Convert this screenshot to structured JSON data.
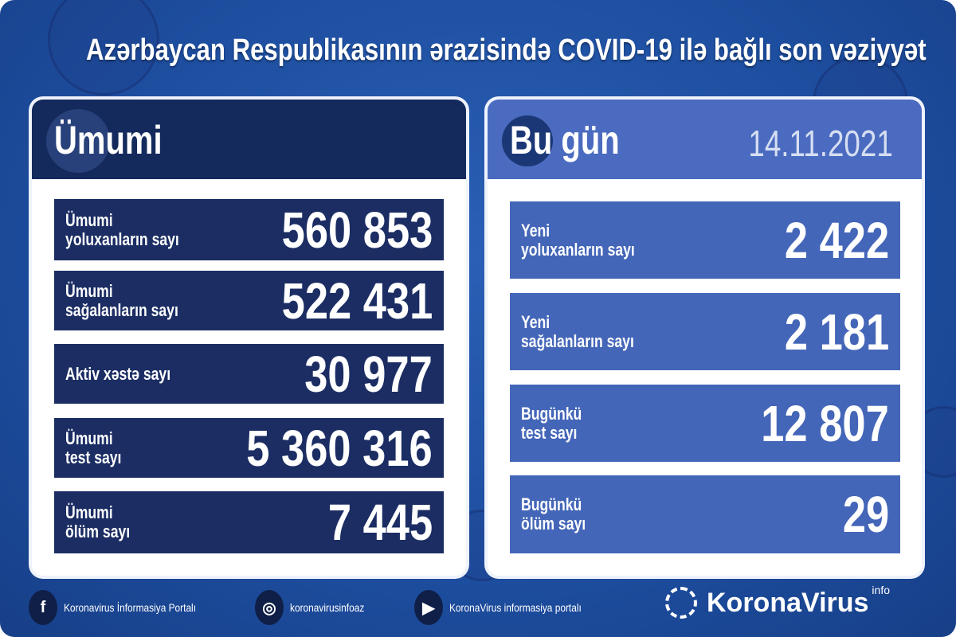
{
  "title": "Azərbaycan Respublikasının ərazisində COVID-19 ilə bağlı son vəziyyət",
  "colors": {
    "background": "#1d4d9e",
    "left_header": "#142a5c",
    "left_rows": "#1b2d63",
    "right_header": "#4a6bbf",
    "right_rows": "#4466b8"
  },
  "total": {
    "heading": "Ümumi",
    "rows": [
      {
        "label": "Ümumi\nyoluxanların sayı",
        "value": "560 853"
      },
      {
        "label": "Ümumi\nsağalanların sayı",
        "value": "522 431"
      },
      {
        "label": "Aktiv xəstə sayı",
        "value": "30 977"
      },
      {
        "label": "Ümumi\ntest sayı",
        "value": "5 360 316"
      },
      {
        "label": "Ümumi\nölüm sayı",
        "value": "7 445"
      }
    ]
  },
  "today": {
    "heading": "Bu gün",
    "date": "14.11.2021",
    "rows": [
      {
        "label": "Yeni\nyoluxanların sayı",
        "value": "2 422"
      },
      {
        "label": "Yeni\nsağalanların sayı",
        "value": "2 181"
      },
      {
        "label": "Bugünkü\ntest sayı",
        "value": "12 807"
      },
      {
        "label": "Bugünkü\nölüm sayı",
        "value": "29"
      }
    ]
  },
  "footer": {
    "facebook": {
      "icon": "facebook-icon",
      "text": "Koronavirus İnformasiya Portalı"
    },
    "instagram": {
      "icon": "instagram-icon",
      "text": "koronavirusinfoaz"
    },
    "youtube": {
      "icon": "youtube-icon",
      "text": "KoronaVirus informasiya portalı"
    },
    "brand": "KoronaVirus",
    "brand_sup": "info"
  }
}
